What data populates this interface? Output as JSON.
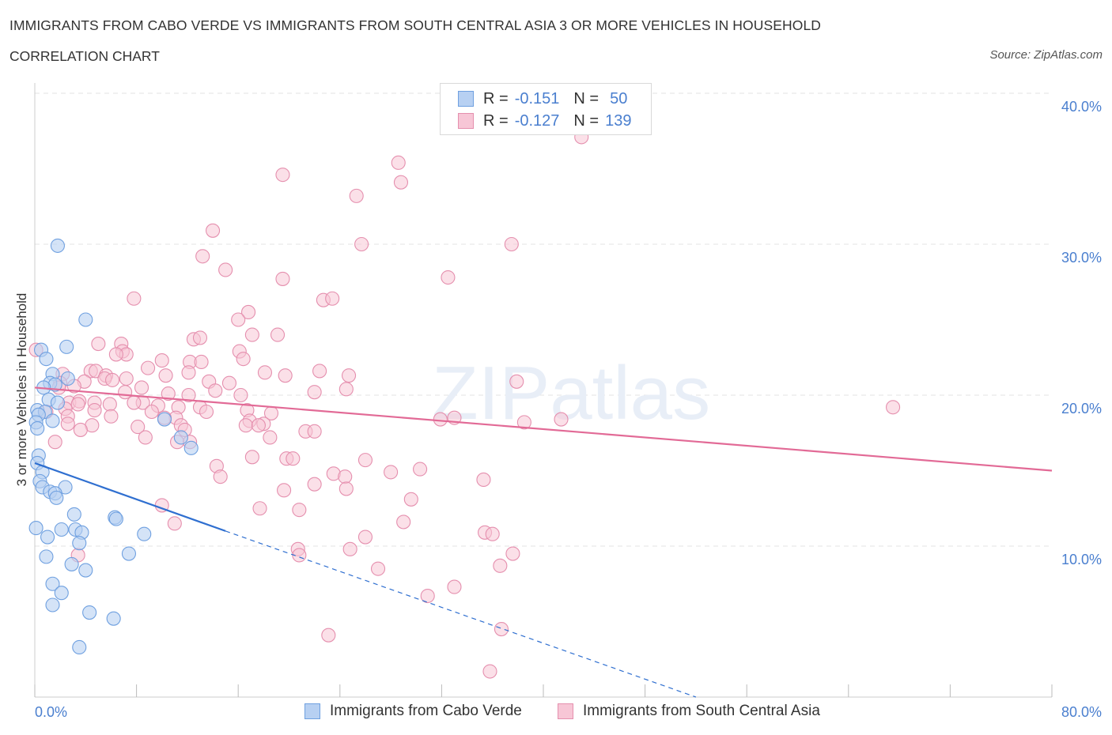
{
  "header": {
    "title": "IMMIGRANTS FROM CABO VERDE VS IMMIGRANTS FROM SOUTH CENTRAL ASIA 3 OR MORE VEHICLES IN HOUSEHOLD",
    "subtitle": "CORRELATION CHART",
    "source": "Source: ZipAtlas.com"
  },
  "watermark": "ZIPatlas",
  "legend": {
    "rows": [
      {
        "r_label": "R =",
        "r_value": "-0.151",
        "n_label": "N =",
        "n_value": "50"
      },
      {
        "r_label": "R =",
        "r_value": "-0.127",
        "n_label": "N =",
        "n_value": "139"
      }
    ]
  },
  "bottom_legend": {
    "blue": "Immigrants from Cabo Verde",
    "pink": "Immigrants from South Central Asia"
  },
  "colors": {
    "blue_fill": "#b7d0f2",
    "blue_stroke": "#6fa0e0",
    "blue_line": "#2f6fd0",
    "pink_fill": "#f7c6d6",
    "pink_stroke": "#e58fae",
    "pink_line": "#e26a96",
    "grid": "#e3e3e3",
    "axis_text": "#4a7fcf"
  },
  "chart_data": {
    "type": "scatter",
    "ylabel": "3 or more Vehicles in Household",
    "xlim": [
      0,
      80
    ],
    "ylim": [
      0,
      40
    ],
    "y_ticks": [
      "10.0%",
      "20.0%",
      "30.0%",
      "40.0%"
    ],
    "x_ticks": [
      "0.0%",
      "80.0%"
    ],
    "grid": "horizontal dashed",
    "legend_position": "top-center",
    "series": [
      {
        "name": "Immigrants from Cabo Verde",
        "color": "#6fa0e0",
        "R": -0.151,
        "N": 50,
        "trend": {
          "x": [
            0,
            15
          ],
          "y": [
            15.5,
            11.0
          ],
          "dashed_to": [
            52,
            0
          ]
        },
        "points": [
          [
            1.8,
            29.9
          ],
          [
            4.0,
            25.0
          ],
          [
            2.5,
            23.2
          ],
          [
            0.5,
            23.0
          ],
          [
            0.9,
            22.4
          ],
          [
            1.4,
            21.4
          ],
          [
            2.6,
            21.1
          ],
          [
            1.2,
            20.8
          ],
          [
            1.6,
            20.7
          ],
          [
            0.7,
            20.5
          ],
          [
            1.1,
            19.7
          ],
          [
            1.8,
            19.5
          ],
          [
            0.2,
            19.0
          ],
          [
            0.8,
            18.9
          ],
          [
            0.3,
            18.7
          ],
          [
            0.1,
            18.2
          ],
          [
            1.4,
            18.3
          ],
          [
            0.2,
            17.8
          ],
          [
            10.2,
            18.4
          ],
          [
            11.5,
            17.2
          ],
          [
            12.3,
            16.5
          ],
          [
            0.3,
            16.0
          ],
          [
            0.2,
            15.5
          ],
          [
            0.6,
            14.9
          ],
          [
            0.4,
            14.3
          ],
          [
            0.6,
            13.9
          ],
          [
            2.4,
            13.9
          ],
          [
            1.2,
            13.6
          ],
          [
            1.6,
            13.5
          ],
          [
            1.7,
            13.2
          ],
          [
            3.1,
            12.1
          ],
          [
            6.3,
            11.9
          ],
          [
            6.4,
            11.8
          ],
          [
            0.1,
            11.2
          ],
          [
            2.1,
            11.1
          ],
          [
            3.2,
            11.1
          ],
          [
            3.7,
            10.9
          ],
          [
            8.6,
            10.8
          ],
          [
            1.0,
            10.6
          ],
          [
            3.5,
            10.2
          ],
          [
            7.4,
            9.5
          ],
          [
            0.9,
            9.3
          ],
          [
            2.9,
            8.8
          ],
          [
            4.0,
            8.4
          ],
          [
            1.4,
            7.5
          ],
          [
            2.1,
            6.9
          ],
          [
            1.4,
            6.1
          ],
          [
            4.3,
            5.6
          ],
          [
            6.2,
            5.2
          ],
          [
            3.5,
            3.3
          ]
        ]
      },
      {
        "name": "Immigrants from South Central Asia",
        "color": "#e58fae",
        "R": -0.127,
        "N": 139,
        "trend": {
          "x": [
            0,
            80
          ],
          "y": [
            20.5,
            15.0
          ]
        },
        "points": [
          [
            43.0,
            37.1
          ],
          [
            28.6,
            35.4
          ],
          [
            19.5,
            34.6
          ],
          [
            28.8,
            34.1
          ],
          [
            25.3,
            33.2
          ],
          [
            14.0,
            30.9
          ],
          [
            25.7,
            30.0
          ],
          [
            37.5,
            30.0
          ],
          [
            13.2,
            29.2
          ],
          [
            15.0,
            28.3
          ],
          [
            32.5,
            27.8
          ],
          [
            19.5,
            27.7
          ],
          [
            22.7,
            26.3
          ],
          [
            23.4,
            26.4
          ],
          [
            7.8,
            26.4
          ],
          [
            16.8,
            25.5
          ],
          [
            16.0,
            25.0
          ],
          [
            5.0,
            23.4
          ],
          [
            12.5,
            23.7
          ],
          [
            13.0,
            23.8
          ],
          [
            17.1,
            24.0
          ],
          [
            19.1,
            24.0
          ],
          [
            0.1,
            23.0
          ],
          [
            6.8,
            23.4
          ],
          [
            6.9,
            22.9
          ],
          [
            7.2,
            22.7
          ],
          [
            6.4,
            22.7
          ],
          [
            12.2,
            22.2
          ],
          [
            13.1,
            22.2
          ],
          [
            16.1,
            22.9
          ],
          [
            16.4,
            22.4
          ],
          [
            10.0,
            22.3
          ],
          [
            8.9,
            21.8
          ],
          [
            4.4,
            21.6
          ],
          [
            4.8,
            21.6
          ],
          [
            5.6,
            21.3
          ],
          [
            2.2,
            21.4
          ],
          [
            10.3,
            21.3
          ],
          [
            12.1,
            21.5
          ],
          [
            18.1,
            21.5
          ],
          [
            19.7,
            21.3
          ],
          [
            22.4,
            21.6
          ],
          [
            24.7,
            21.3
          ],
          [
            37.9,
            20.9
          ],
          [
            2.0,
            20.8
          ],
          [
            3.9,
            20.9
          ],
          [
            5.5,
            21.1
          ],
          [
            6.1,
            21.0
          ],
          [
            7.2,
            21.1
          ],
          [
            1.9,
            20.5
          ],
          [
            3.1,
            20.6
          ],
          [
            8.4,
            20.5
          ],
          [
            13.7,
            20.9
          ],
          [
            15.3,
            20.8
          ],
          [
            7.1,
            20.2
          ],
          [
            10.5,
            20.1
          ],
          [
            12.1,
            20.0
          ],
          [
            14.2,
            20.3
          ],
          [
            16.2,
            20.0
          ],
          [
            22.0,
            20.2
          ],
          [
            24.5,
            20.4
          ],
          [
            2.7,
            19.5
          ],
          [
            3.5,
            19.6
          ],
          [
            4.7,
            19.5
          ],
          [
            5.9,
            19.4
          ],
          [
            8.5,
            19.5
          ],
          [
            9.7,
            19.3
          ],
          [
            11.3,
            19.2
          ],
          [
            13.0,
            19.2
          ],
          [
            16.7,
            19.0
          ],
          [
            2.4,
            19.1
          ],
          [
            3.4,
            19.4
          ],
          [
            4.7,
            19.0
          ],
          [
            7.8,
            19.5
          ],
          [
            9.2,
            18.9
          ],
          [
            11.1,
            18.5
          ],
          [
            13.5,
            18.9
          ],
          [
            18.6,
            18.8
          ],
          [
            0.9,
            18.9
          ],
          [
            2.6,
            18.6
          ],
          [
            2.6,
            18.1
          ],
          [
            4.5,
            18.0
          ],
          [
            6.0,
            18.6
          ],
          [
            10.2,
            18.5
          ],
          [
            11.5,
            18.0
          ],
          [
            16.9,
            18.3
          ],
          [
            18.0,
            18.1
          ],
          [
            31.9,
            18.4
          ],
          [
            33.0,
            18.5
          ],
          [
            38.5,
            18.2
          ],
          [
            41.4,
            18.4
          ],
          [
            67.5,
            19.2
          ],
          [
            3.6,
            17.7
          ],
          [
            8.1,
            17.9
          ],
          [
            11.8,
            17.7
          ],
          [
            16.6,
            18.0
          ],
          [
            17.6,
            18.0
          ],
          [
            21.3,
            17.6
          ],
          [
            22.0,
            17.6
          ],
          [
            1.6,
            16.9
          ],
          [
            8.7,
            17.2
          ],
          [
            18.5,
            17.2
          ],
          [
            11.2,
            16.9
          ],
          [
            12.2,
            16.9
          ],
          [
            17.1,
            15.9
          ],
          [
            19.8,
            15.8
          ],
          [
            20.3,
            15.8
          ],
          [
            26.0,
            15.7
          ],
          [
            14.3,
            15.3
          ],
          [
            30.3,
            15.1
          ],
          [
            14.6,
            14.6
          ],
          [
            23.5,
            14.8
          ],
          [
            24.4,
            14.6
          ],
          [
            28.0,
            14.9
          ],
          [
            35.3,
            14.4
          ],
          [
            22.0,
            14.1
          ],
          [
            19.6,
            13.7
          ],
          [
            24.5,
            13.8
          ],
          [
            29.6,
            13.1
          ],
          [
            10.0,
            12.7
          ],
          [
            17.7,
            12.5
          ],
          [
            20.8,
            12.4
          ],
          [
            11.0,
            11.5
          ],
          [
            29.0,
            11.6
          ],
          [
            35.4,
            10.9
          ],
          [
            36.0,
            10.8
          ],
          [
            26.0,
            10.6
          ],
          [
            20.7,
            9.8
          ],
          [
            24.8,
            9.8
          ],
          [
            37.6,
            9.5
          ],
          [
            20.8,
            9.4
          ],
          [
            3.4,
            9.4
          ],
          [
            27.0,
            8.5
          ],
          [
            36.6,
            8.7
          ],
          [
            33.0,
            7.3
          ],
          [
            30.9,
            6.7
          ],
          [
            36.7,
            4.5
          ],
          [
            23.1,
            4.1
          ],
          [
            35.8,
            1.7
          ]
        ]
      }
    ]
  }
}
